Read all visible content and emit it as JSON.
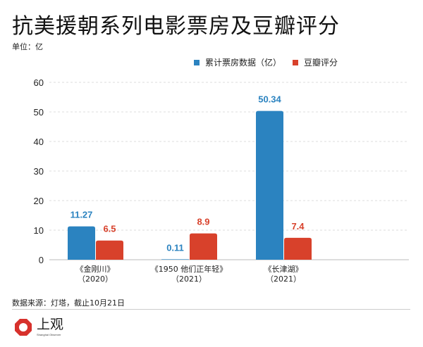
{
  "title": "抗美援朝系列电影票房及豆瓣评分",
  "unit": "单位：亿",
  "source": "数据来源：灯塔，截止10月21日",
  "logo": {
    "name": "上观",
    "sub": "Shanghai Observer",
    "color": "#d7312c"
  },
  "chart_data": {
    "type": "bar",
    "categories": [
      [
        "《金刚川》",
        "（2020）"
      ],
      [
        "《1950 他们正年轻》",
        "（2021）"
      ],
      [
        "《长津湖》",
        "（2021）"
      ]
    ],
    "series": [
      {
        "name": "累计票房数据（亿）",
        "values": [
          11.27,
          0.11,
          50.34
        ],
        "labels": [
          "11.27",
          "0.11",
          "50.34"
        ],
        "color": "#2b83c0"
      },
      {
        "name": "豆瓣评分",
        "values": [
          6.5,
          8.9,
          7.4
        ],
        "labels": [
          "6.5",
          "8.9",
          "7.4"
        ],
        "color": "#d8412b"
      }
    ],
    "ylim": [
      0,
      60
    ],
    "yticks": [
      0,
      10,
      20,
      30,
      40,
      50,
      60
    ],
    "grid": true,
    "legend": "top-right"
  }
}
